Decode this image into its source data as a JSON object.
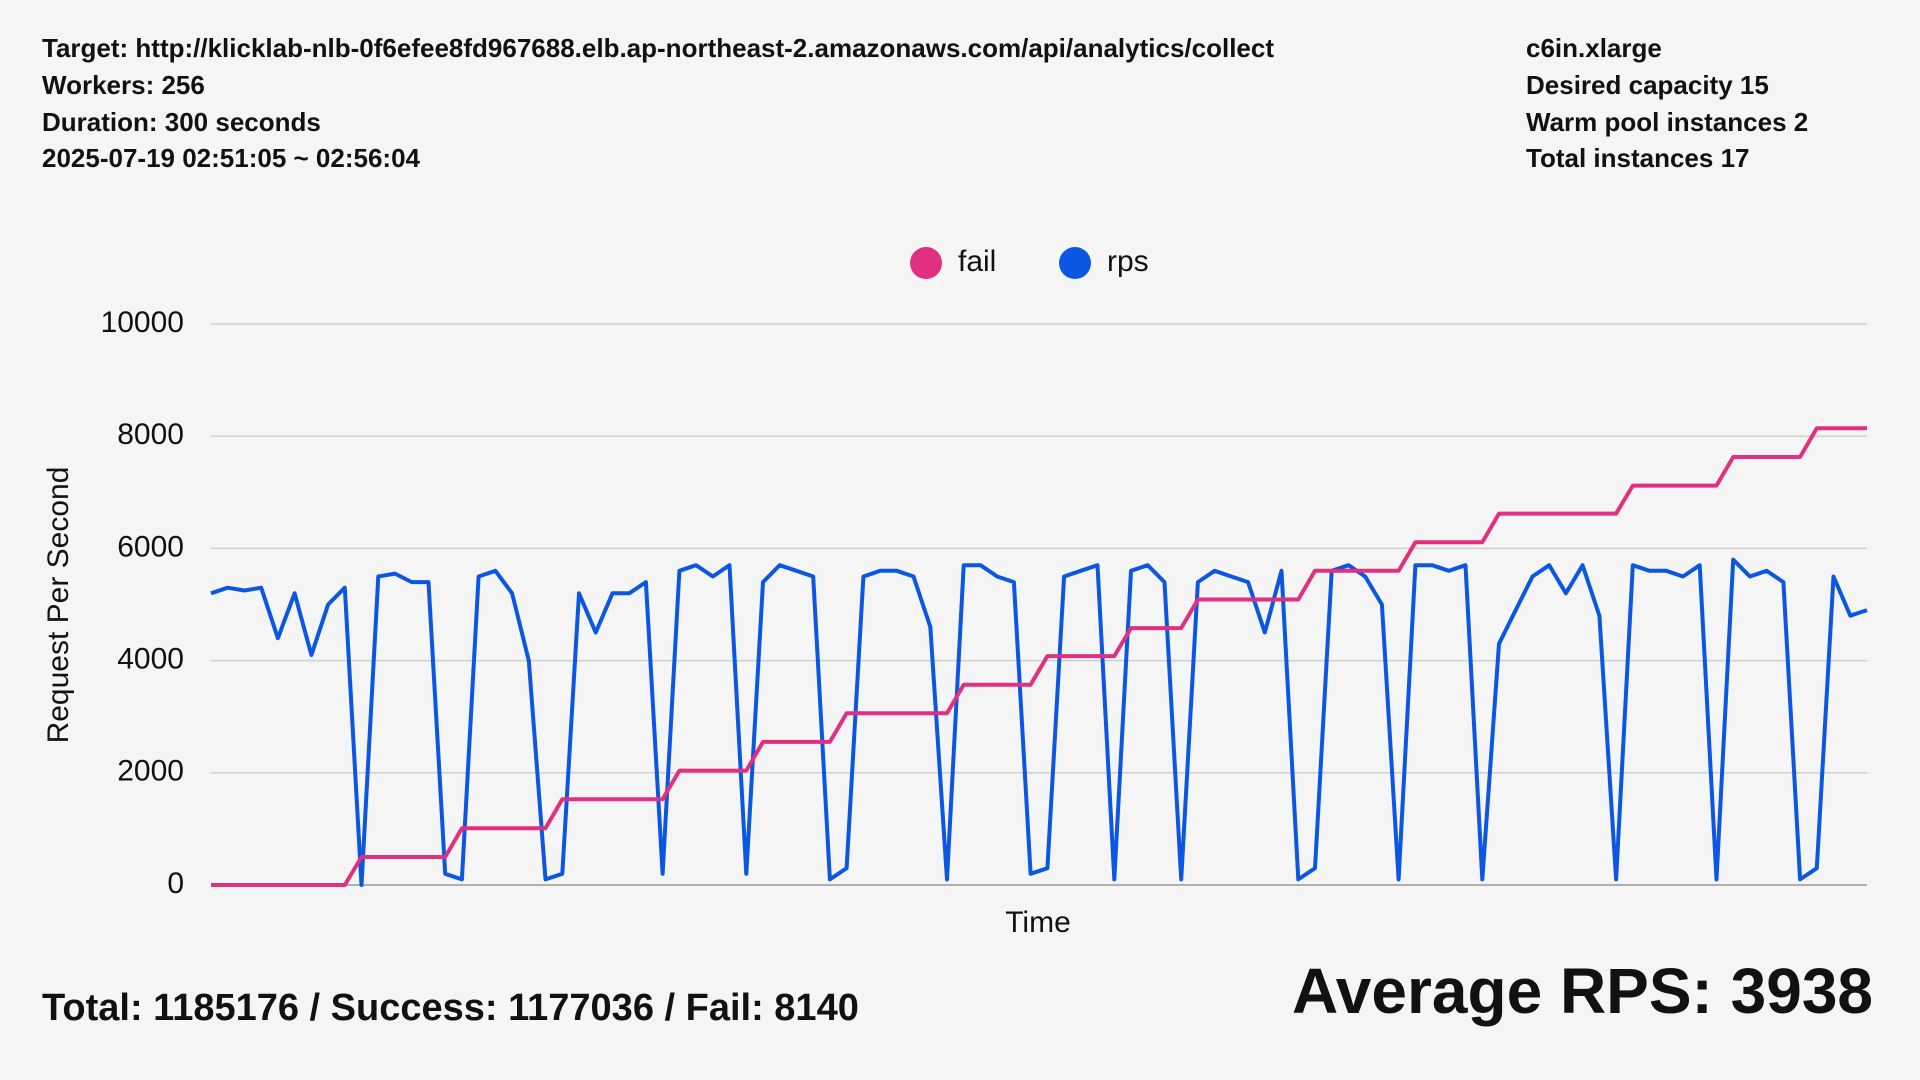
{
  "header": {
    "target": "Target: http://klicklab-nlb-0f6efee8fd967688.elb.ap-northeast-2.amazonaws.com/api/analytics/collect",
    "workers": "Workers: 256",
    "duration": "Duration: 300 seconds",
    "time_range": "2025-07-19 02:51:05 ~ 02:56:04"
  },
  "instance": {
    "type": "c6in.xlarge",
    "desired": "Desired capacity 15",
    "warm_pool": "Warm pool instances 2",
    "total": "Total instances 17"
  },
  "summary": {
    "totals": "Total: 1185176 / Success: 1177036 / Fail: 8140",
    "average": "Average RPS: 3938"
  },
  "chart_data": {
    "type": "line",
    "xlabel": "Time",
    "ylabel": "Request Per Second",
    "ylim": [
      0,
      10000
    ],
    "yticks": [
      0,
      2000,
      4000,
      6000,
      8000,
      10000
    ],
    "grid": true,
    "categories": [
      null,
      null,
      null,
      null,
      null,
      null,
      null,
      null,
      null,
      null,
      null,
      null,
      null,
      null,
      null,
      null,
      null,
      null,
      null,
      null,
      null,
      null,
      null,
      null,
      null,
      null,
      null,
      null,
      null,
      null,
      null,
      null,
      null,
      null,
      null,
      null,
      null,
      null,
      null,
      null,
      null,
      null,
      null,
      null,
      null,
      null,
      null,
      null,
      null,
      null,
      null,
      null,
      null,
      null,
      null,
      null,
      null,
      null,
      null,
      null,
      null,
      null,
      null,
      null,
      null,
      null,
      null,
      null,
      null,
      null,
      null,
      null,
      null,
      null,
      null,
      null,
      null,
      null,
      null,
      null,
      null,
      null,
      null,
      null,
      null,
      null,
      null,
      null,
      null,
      null,
      null,
      null,
      null,
      null,
      null,
      null,
      null,
      null,
      null,
      null
    ],
    "series": [
      {
        "name": "fail",
        "color": "#e0307f",
        "values": [
          0,
          0,
          0,
          0,
          0,
          0,
          0,
          0,
          0,
          500,
          500,
          500,
          500,
          500,
          500,
          1010,
          1010,
          1010,
          1010,
          1010,
          1010,
          1530,
          1530,
          1530,
          1530,
          1530,
          1530,
          1530,
          2040,
          2040,
          2040,
          2040,
          2040,
          2550,
          2550,
          2550,
          2550,
          2550,
          3060,
          3060,
          3060,
          3060,
          3060,
          3060,
          3060,
          3570,
          3570,
          3570,
          3570,
          3570,
          4080,
          4080,
          4080,
          4080,
          4080,
          4580,
          4580,
          4580,
          4580,
          5090,
          5090,
          5090,
          5090,
          5090,
          5090,
          5090,
          5600,
          5600,
          5600,
          5600,
          5600,
          5600,
          6110,
          6110,
          6110,
          6110,
          6110,
          6620,
          6620,
          6620,
          6620,
          6620,
          6620,
          6620,
          6620,
          7120,
          7120,
          7120,
          7120,
          7120,
          7120,
          7630,
          7630,
          7630,
          7630,
          7630,
          8140,
          8140,
          8140,
          8140
        ]
      },
      {
        "name": "rps",
        "color": "#0b57e3",
        "values": [
          5200,
          5300,
          5250,
          5300,
          4400,
          5200,
          4100,
          5000,
          5300,
          0,
          5500,
          5550,
          5400,
          5400,
          200,
          100,
          5500,
          5600,
          5200,
          4000,
          100,
          200,
          5200,
          4500,
          5200,
          5200,
          5400,
          200,
          5600,
          5700,
          5500,
          5700,
          200,
          5400,
          5700,
          5600,
          5500,
          100,
          300,
          5500,
          5600,
          5600,
          5500,
          4600,
          100,
          5700,
          5700,
          5500,
          5400,
          200,
          300,
          5500,
          5600,
          5700,
          100,
          5600,
          5700,
          5400,
          100,
          5400,
          5600,
          5500,
          5400,
          4500,
          5600,
          100,
          300,
          5600,
          5700,
          5500,
          5000,
          100,
          5700,
          5700,
          5600,
          5700,
          100,
          4300,
          4900,
          5500,
          5700,
          5200,
          5700,
          4800,
          100,
          5700,
          5600,
          5600,
          5500,
          5700,
          100,
          5800,
          5500,
          5600,
          5400,
          100,
          300,
          5500,
          4800,
          4900
        ]
      }
    ]
  }
}
